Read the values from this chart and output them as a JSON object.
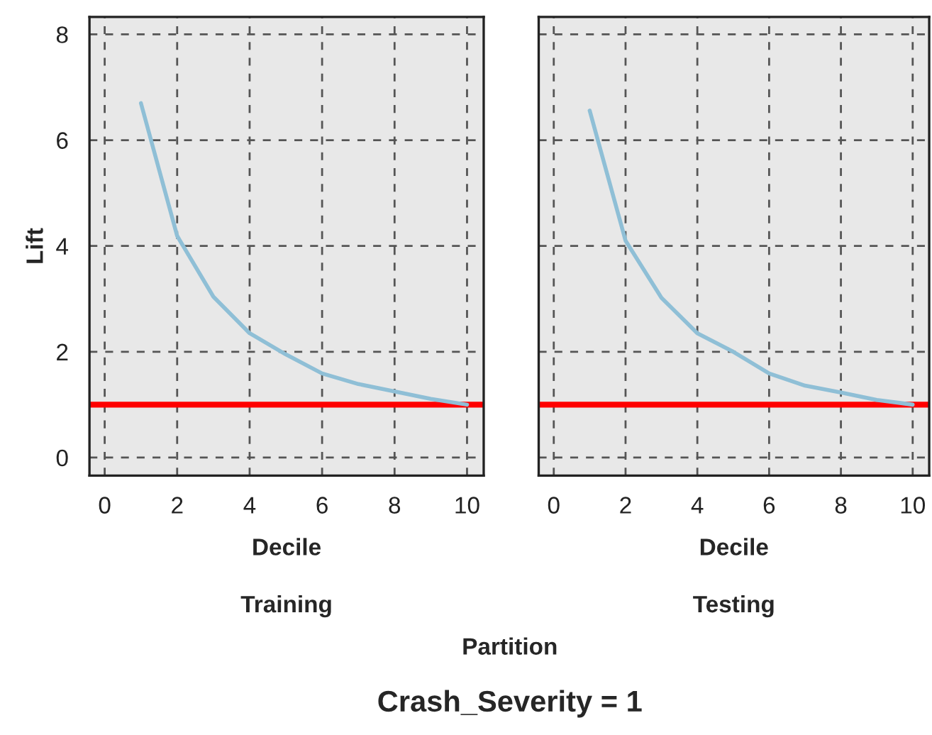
{
  "chart_data": [
    {
      "type": "line",
      "xlabel": "Decile",
      "ylabel": "Lift",
      "x": [
        1,
        2,
        3,
        4,
        5,
        6,
        7,
        8,
        9,
        10
      ],
      "xlim": [
        -0.42,
        10.46
      ],
      "ylim": [
        -0.34,
        8.33
      ],
      "xticks": [
        0,
        2,
        4,
        6,
        8,
        10
      ],
      "yticks": [
        0,
        2,
        4,
        6,
        8
      ],
      "grid": true,
      "annotations": [
        "Training"
      ],
      "series": [
        {
          "color": "#8fbfd6",
          "values": [
            6.7,
            4.19,
            3.04,
            2.35,
            1.95,
            1.59,
            1.39,
            1.25,
            1.11,
            1.0
          ]
        }
      ],
      "ref_lines": [
        {
          "axis": "y",
          "value": 1,
          "color": "#ff0000"
        }
      ]
    },
    {
      "type": "line",
      "xlabel": "Decile",
      "x": [
        1,
        2,
        3,
        4,
        5,
        6,
        7,
        8,
        9,
        10
      ],
      "xlim": [
        -0.42,
        10.46
      ],
      "ylim": [
        -0.34,
        8.33
      ],
      "xticks": [
        0,
        2,
        4,
        6,
        8,
        10
      ],
      "yticks": [
        0,
        2,
        4,
        6,
        8
      ],
      "grid": true,
      "tick_labels": "x",
      "annotations": [
        "Testing",
        "Partition",
        "Crash_Severity = 1"
      ],
      "series": [
        {
          "color": "#8fbfd6",
          "values": [
            6.56,
            4.1,
            3.02,
            2.35,
            2.0,
            1.59,
            1.36,
            1.23,
            1.09,
            1.0
          ]
        }
      ],
      "ref_lines": [
        {
          "axis": "y",
          "value": 1,
          "color": "#ff0000"
        }
      ]
    }
  ]
}
